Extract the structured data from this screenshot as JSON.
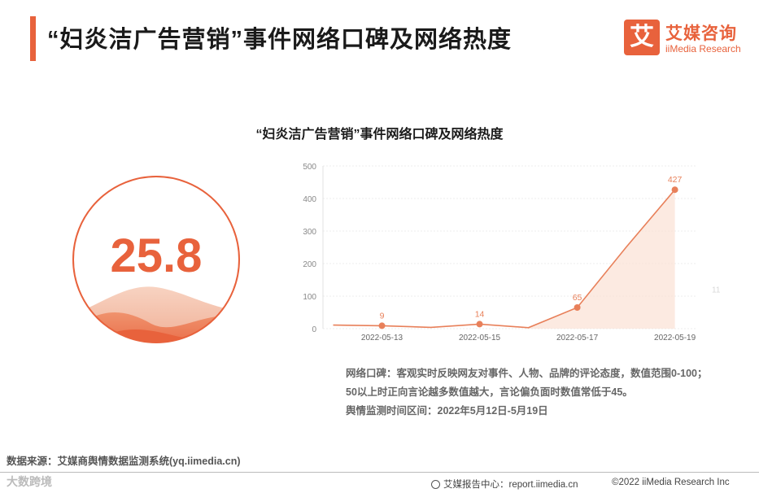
{
  "header": {
    "title": "“妇炎洁广告营销”事件网络口碑及网络热度"
  },
  "logo": {
    "mark": "艾",
    "name_cn": "艾媒咨询",
    "name_en": "iiMedia Research"
  },
  "chart_title": "“妇炎洁广告营销”事件网络口碑及网络热度",
  "gauge": {
    "value": "25.8"
  },
  "colors": {
    "accent": "#e8623c",
    "line": "#e8805a",
    "area": "#fbe1d4"
  },
  "chart_data": {
    "type": "area",
    "title": "“妇炎洁广告营销”事件网络口碑及网络热度",
    "x": [
      "2022-05-12",
      "2022-05-13",
      "2022-05-14",
      "2022-05-15",
      "2022-05-16",
      "2022-05-17",
      "2022-05-18",
      "2022-05-19"
    ],
    "x_tick_labels": [
      "2022-05-13",
      "2022-05-15",
      "2022-05-17",
      "2022-05-19"
    ],
    "series": [
      {
        "values": [
          11,
          9,
          4,
          14,
          3,
          65,
          250,
          427
        ],
        "data_labels": [
          "",
          "9",
          "",
          "14",
          "",
          "65",
          "",
          "427"
        ]
      }
    ],
    "ylim": [
      0,
      500
    ],
    "yticks": [
      "0",
      "100",
      "200",
      "300",
      "400",
      "500"
    ],
    "grid": true,
    "side_label": "11",
    "xlabel": "",
    "ylabel": ""
  },
  "notes": {
    "line1": "网络口碑：客观实时反映网友对事件、人物、品牌的评论态度，数值范围0-100；",
    "line2": "50以上时正向言论越多数值越大，言论偏负面时数值常低于45。",
    "line3": "舆情监测时间区间：2022年5月12日-5月19日"
  },
  "source": "数据来源：艾媒商舆情数据监测系统(yq.iimedia.cn)",
  "footer": {
    "watermark_label": "大数跨境",
    "report": "艾媒报告中心：report.iimedia.cn",
    "copyright": "©2022  iiMedia Research  Inc"
  }
}
